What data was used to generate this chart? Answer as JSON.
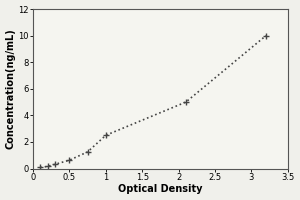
{
  "title": "",
  "xlabel": "Optical Density",
  "ylabel": "Concentration(ng/mL)",
  "x_data": [
    0.1,
    0.2,
    0.3,
    0.5,
    0.75,
    1.0,
    2.1,
    3.2
  ],
  "y_data": [
    0.078,
    0.156,
    0.312,
    0.625,
    1.25,
    2.5,
    5.0,
    10.0
  ],
  "xlim": [
    0,
    3.5
  ],
  "ylim": [
    0,
    12
  ],
  "xticks": [
    0,
    0.5,
    1.0,
    1.5,
    2.0,
    2.5,
    3.0,
    3.5
  ],
  "xticklabels": [
    "0",
    "0.5",
    "1",
    "1.5",
    "2",
    "2.5",
    "3",
    "3.5"
  ],
  "yticks": [
    0,
    2,
    4,
    6,
    8,
    10,
    12
  ],
  "yticklabels": [
    "0",
    "2",
    "4",
    "6",
    "8",
    "10",
    "12"
  ],
  "line_color": "#444444",
  "marker_color": "#444444",
  "plot_bg_color": "#f5f5f0",
  "fig_bg_color": "#f0f0eb",
  "tick_fontsize": 6.0,
  "label_fontsize": 7.0,
  "linewidth": 1.2,
  "markersize": 4.5,
  "markeredgewidth": 1.0
}
